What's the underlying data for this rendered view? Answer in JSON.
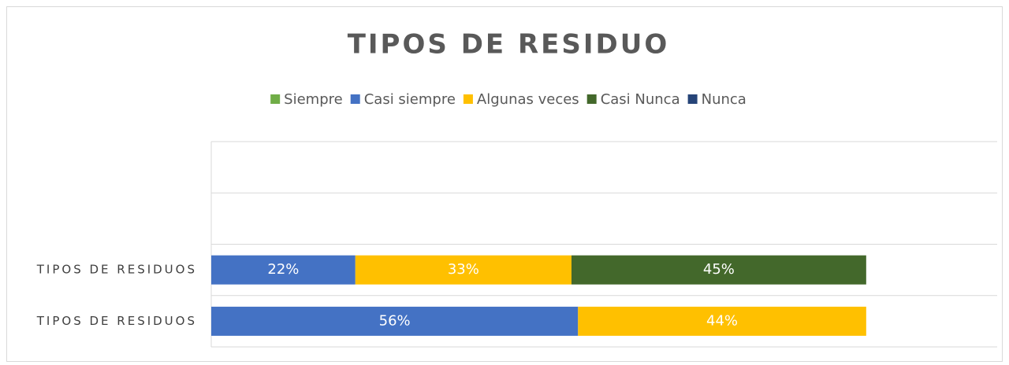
{
  "chart_data": {
    "type": "stacked-bar-horizontal",
    "title": "TIPOS DE RESIDUO",
    "categories": [
      null,
      null,
      "TIPOS DE RESIDUOS",
      "TIPOS DE RESIDUOS"
    ],
    "series": [
      {
        "name": "Siempre",
        "color": "#70ad47",
        "values": [
          null,
          null,
          null,
          null
        ],
        "value_labels": [
          null,
          null,
          null,
          null
        ]
      },
      {
        "name": "Casi siempre",
        "color": "#4472c4",
        "values": [
          null,
          null,
          22,
          56
        ],
        "value_labels": [
          null,
          null,
          "22%",
          "56%"
        ]
      },
      {
        "name": "Algunas veces",
        "color": "#ffc000",
        "values": [
          null,
          null,
          33,
          44
        ],
        "value_labels": [
          null,
          null,
          "33%",
          "44%"
        ]
      },
      {
        "name": "Casi Nunca",
        "color": "#43682b",
        "values": [
          null,
          null,
          45,
          null
        ],
        "value_labels": [
          null,
          null,
          "45%",
          null
        ]
      },
      {
        "name": "Nunca",
        "color": "#264478",
        "values": [
          null,
          null,
          null,
          null
        ],
        "value_labels": [
          null,
          null,
          null,
          null
        ]
      }
    ],
    "xlim": [
      0,
      120
    ],
    "legend": "top"
  }
}
